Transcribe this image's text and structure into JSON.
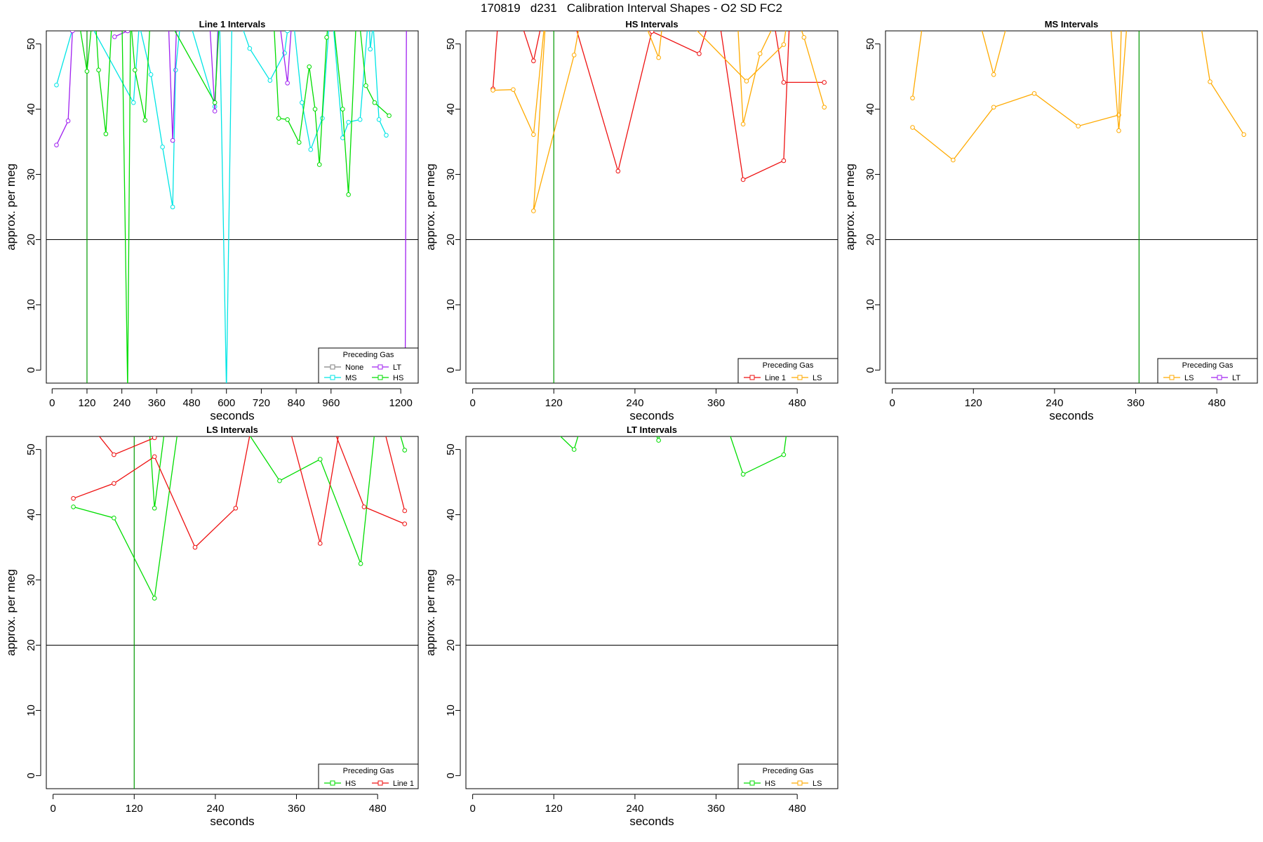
{
  "page": {
    "title": "170819   d231   Calibration Interval Shapes - O2 SD FC2"
  },
  "colors": {
    "None": "#808080",
    "MS": "#00e5e5",
    "LT": "#a020f0",
    "HS": "#00dd00",
    "Line 1": "#ee1111",
    "LS": "#ffaa00",
    "vline_green": "#009900",
    "hline": "#000000"
  },
  "chart_data": [
    {
      "type": "line",
      "title": "Line 1 Intervals",
      "xlabel": "seconds",
      "ylabel": "approx. per meg",
      "xlim": [
        -20,
        1260
      ],
      "ylim": [
        -2,
        52
      ],
      "xticks": [
        0,
        120,
        240,
        360,
        480,
        600,
        720,
        840,
        960,
        1200
      ],
      "yticks": [
        0,
        10,
        20,
        30,
        40,
        50
      ],
      "hline": 20,
      "legend": {
        "title": "Preceding Gas",
        "position": "bottom-right",
        "entries": [
          "None",
          "LT",
          "MS",
          "HS"
        ]
      },
      "series": [
        {
          "name": "MS",
          "color": "MS",
          "points": [
            [
              15,
              43.7
            ],
            [
              75,
              53
            ],
            [
              95,
              56
            ],
            [
              280,
              41
            ],
            [
              300,
              53
            ],
            [
              340,
              45.3
            ],
            [
              380,
              34.2
            ],
            [
              415,
              25
            ],
            [
              425,
              46
            ],
            [
              450,
              57
            ],
            [
              560,
              40.4
            ],
            [
              575,
              57
            ],
            [
              600,
              -3
            ],
            [
              620,
              57
            ],
            [
              680,
              49.3
            ],
            [
              750,
              44.4
            ],
            [
              800,
              48.6
            ],
            [
              810,
              52
            ],
            [
              825,
              56
            ],
            [
              860,
              41
            ],
            [
              890,
              33.8
            ],
            [
              930,
              38.6
            ],
            [
              960,
              57
            ],
            [
              1000,
              35.6
            ],
            [
              1020,
              38
            ],
            [
              1060,
              38.4
            ],
            [
              1090,
              55
            ],
            [
              1095,
              49.2
            ],
            [
              1105,
              53
            ],
            [
              1125,
              38.4
            ],
            [
              1150,
              36
            ]
          ]
        },
        {
          "name": "LT",
          "color": "LT",
          "points": [
            [
              15,
              34.5
            ],
            [
              55,
              38.2
            ],
            [
              70,
              52
            ],
            [
              80,
              57
            ]
          ]
        },
        {
          "name": "LT",
          "color": "LT",
          "points": [
            [
              215,
              51.1
            ],
            [
              260,
              52
            ],
            [
              285,
              55
            ],
            [
              400,
              54
            ],
            [
              415,
              35.2
            ],
            [
              430,
              55
            ],
            [
              540,
              55
            ],
            [
              560,
              39.7
            ],
            [
              575,
              57
            ],
            [
              775,
              56
            ],
            [
              810,
              44
            ],
            [
              830,
              57
            ],
            [
              1220,
              57
            ],
            [
              1215,
              -3
            ]
          ]
        },
        {
          "name": "HS",
          "color": "HS",
          "points": [
            [
              80,
              57
            ],
            [
              120,
              45.8
            ],
            [
              145,
              57
            ],
            [
              160,
              46
            ],
            [
              185,
              36.2
            ],
            [
              210,
              57
            ],
            [
              240,
              55
            ],
            [
              260,
              -3
            ],
            [
              270,
              54
            ],
            [
              285,
              46
            ],
            [
              320,
              38.3
            ],
            [
              340,
              56
            ],
            [
              360,
              57
            ],
            [
              560,
              41
            ],
            [
              580,
              57
            ],
            [
              760,
              56
            ],
            [
              780,
              38.6
            ],
            [
              810,
              38.4
            ],
            [
              850,
              34.9
            ],
            [
              885,
              46.5
            ],
            [
              905,
              40
            ],
            [
              920,
              31.5
            ],
            [
              945,
              51
            ],
            [
              960,
              57
            ],
            [
              1000,
              40
            ],
            [
              1020,
              26.9
            ],
            [
              1050,
              57
            ],
            [
              1080,
              43.6
            ],
            [
              1110,
              41
            ],
            [
              1160,
              39
            ]
          ]
        }
      ],
      "vlines": [
        {
          "x": 120,
          "color": "vline_green"
        }
      ]
    },
    {
      "type": "line",
      "title": "HS Intervals",
      "xlabel": "seconds",
      "ylabel": "approx. per meg",
      "xlim": [
        -10,
        540
      ],
      "ylim": [
        -2,
        52
      ],
      "xticks": [
        0,
        120,
        240,
        360,
        480
      ],
      "yticks": [
        0,
        10,
        20,
        30,
        40,
        50
      ],
      "hline": 20,
      "legend": {
        "title": "Preceding Gas",
        "position": "bottom-right",
        "entries": [
          "Line 1",
          "LS"
        ]
      },
      "series": [
        {
          "name": "Line 1",
          "color": "Line 1",
          "points": [
            [
              30,
              43.1
            ],
            [
              40,
              57
            ],
            [
              60,
              57
            ],
            [
              90,
              47.4
            ],
            [
              110,
              57
            ],
            [
              140,
              57
            ],
            [
              215,
              30.5
            ],
            [
              265,
              51.9
            ],
            [
              335,
              48.5
            ],
            [
              360,
              57
            ],
            [
              400,
              29.2
            ],
            [
              460,
              32.1
            ],
            [
              470,
              57
            ],
            [
              440,
              57
            ],
            [
              460,
              44.1
            ],
            [
              520,
              44.1
            ]
          ]
        },
        {
          "name": "LS",
          "color": "LS",
          "points": [
            [
              30,
              42.9
            ],
            [
              60,
              43
            ],
            [
              90,
              36.1
            ],
            [
              110,
              57
            ],
            [
              90,
              24.4
            ],
            [
              150,
              48.3
            ],
            [
              165,
              57
            ],
            [
              240,
              57
            ],
            [
              275,
              47.9
            ],
            [
              285,
              57
            ],
            [
              405,
              44.3
            ],
            [
              460,
              49.9
            ],
            [
              470,
              57
            ],
            [
              490,
              51
            ],
            [
              520,
              40.3
            ]
          ]
        },
        {
          "name": "LS",
          "color": "LS",
          "points": [
            [
              390,
              57
            ],
            [
              400,
              37.7
            ],
            [
              425,
              48.5
            ],
            [
              460,
              56
            ],
            [
              470,
              57
            ]
          ]
        }
      ],
      "vlines": [
        {
          "x": 120,
          "color": "vline_green"
        }
      ]
    },
    {
      "type": "line",
      "title": "MS Intervals",
      "xlabel": "seconds",
      "ylabel": "approx. per meg",
      "xlim": [
        -10,
        540
      ],
      "ylim": [
        -2,
        52
      ],
      "xticks": [
        0,
        120,
        240,
        360,
        480
      ],
      "yticks": [
        0,
        10,
        20,
        30,
        40,
        50
      ],
      "hline": 20,
      "legend": {
        "title": "Preceding Gas",
        "position": "bottom-right",
        "entries": [
          "LS",
          "LT"
        ]
      },
      "series": [
        {
          "name": "LS",
          "color": "LS",
          "points": [
            [
              30,
              41.7
            ],
            [
              50,
              57
            ],
            [
              120,
              57
            ],
            [
              150,
              45.3
            ],
            [
              180,
              57
            ],
            [
              220,
              57
            ]
          ]
        },
        {
          "name": "LS",
          "color": "LS",
          "points": [
            [
              30,
              37.2
            ],
            [
              90,
              32.2
            ],
            [
              150,
              40.3
            ],
            [
              210,
              42.4
            ],
            [
              275,
              37.4
            ],
            [
              335,
              39.1
            ],
            [
              340,
              57
            ]
          ]
        },
        {
          "name": "LS",
          "color": "LS",
          "points": [
            [
              320,
              57
            ],
            [
              335,
              36.7
            ],
            [
              350,
              57
            ],
            [
              450,
              57
            ],
            [
              470,
              44.2
            ],
            [
              520,
              36.1
            ]
          ]
        }
      ],
      "vlines": [
        {
          "x": 365,
          "color": "vline_green"
        }
      ]
    },
    {
      "type": "line",
      "title": "LS Intervals",
      "xlabel": "seconds",
      "ylabel": "approx. per meg",
      "xlim": [
        -10,
        540
      ],
      "ylim": [
        -2,
        52
      ],
      "xticks": [
        0,
        120,
        240,
        360,
        480
      ],
      "yticks": [
        0,
        10,
        20,
        30,
        40,
        50
      ],
      "hline": 20,
      "legend": {
        "title": "Preceding Gas",
        "position": "bottom-right",
        "entries": [
          "HS",
          "Line 1"
        ]
      },
      "series": [
        {
          "name": "HS",
          "color": "HS",
          "points": [
            [
              30,
              41.2
            ],
            [
              90,
              39.5
            ],
            [
              150,
              27.2
            ],
            [
              190,
              57
            ],
            [
              140,
              57
            ],
            [
              150,
              41
            ],
            [
              170,
              57
            ],
            [
              260,
              57
            ],
            [
              335,
              45.2
            ],
            [
              395,
              48.5
            ],
            [
              455,
              32.5
            ],
            [
              480,
              57
            ],
            [
              500,
              57
            ],
            [
              520,
              49.9
            ]
          ]
        },
        {
          "name": "Line 1",
          "color": "Line 1",
          "points": [
            [
              30,
              57
            ],
            [
              90,
              49.2
            ],
            [
              150,
              51.8
            ],
            [
              160,
              57
            ]
          ]
        },
        {
          "name": "Line 1",
          "color": "Line 1",
          "points": [
            [
              30,
              42.5
            ],
            [
              90,
              44.8
            ],
            [
              150,
              48.9
            ],
            [
              210,
              35
            ],
            [
              270,
              41
            ],
            [
              300,
              57
            ],
            [
              340,
              57
            ],
            [
              395,
              35.6
            ],
            [
              430,
              57
            ]
          ]
        },
        {
          "name": "Line 1",
          "color": "Line 1",
          "points": [
            [
              400,
              57
            ],
            [
              460,
              41.2
            ],
            [
              520,
              38.6
            ]
          ]
        },
        {
          "name": "Line 1",
          "color": "Line 1",
          "points": [
            [
              440,
              57
            ],
            [
              480,
              57
            ],
            [
              520,
              40.6
            ]
          ]
        }
      ],
      "vlines": [
        {
          "x": 120,
          "color": "vline_green"
        }
      ]
    },
    {
      "type": "line",
      "title": "LT Intervals",
      "xlabel": "seconds",
      "ylabel": "approx. per meg",
      "xlim": [
        -10,
        540
      ],
      "ylim": [
        -2,
        52
      ],
      "xticks": [
        0,
        120,
        240,
        360,
        480
      ],
      "yticks": [
        0,
        10,
        20,
        30,
        40,
        50
      ],
      "hline": 20,
      "legend": {
        "title": "Preceding Gas",
        "position": "bottom-right",
        "entries": [
          "HS",
          "LS"
        ]
      },
      "series": [
        {
          "name": "HS",
          "color": "HS",
          "points": [
            [
              110,
              54
            ],
            [
              150,
              50
            ],
            [
              170,
              57
            ],
            [
              250,
              57
            ],
            [
              275,
              51.4
            ],
            [
              285,
              57
            ],
            [
              365,
              57
            ],
            [
              400,
              46.2
            ],
            [
              460,
              49.2
            ],
            [
              470,
              57
            ]
          ]
        }
      ],
      "vlines": []
    }
  ]
}
